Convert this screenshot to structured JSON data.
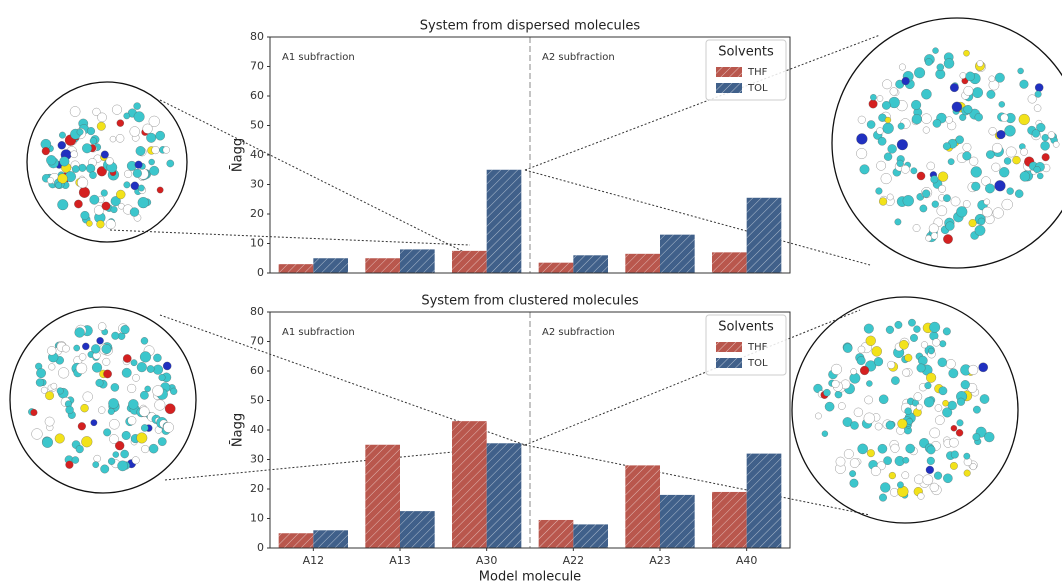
{
  "chart_data": [
    {
      "type": "bar",
      "title": "System from dispersed molecules",
      "ylabel": "N̄agg",
      "annotations": [
        "A1 subfraction",
        "A2 subfraction"
      ],
      "legend_title": "Solvents",
      "legend": "upper right",
      "ylim": [
        0,
        80
      ],
      "yticks": [
        0,
        10,
        20,
        30,
        40,
        50,
        60,
        70,
        80
      ],
      "hatch": true,
      "series": [
        {
          "name": "THF",
          "color": "#b9574d",
          "values": [
            3,
            5,
            7.5,
            3.5,
            6.5,
            7
          ]
        },
        {
          "name": "TOL",
          "color": "#40608a",
          "values": [
            5,
            8,
            35,
            6,
            13,
            25.5
          ]
        }
      ]
    },
    {
      "type": "bar",
      "title": "System from clustered molecules",
      "ylabel": "N̄agg",
      "xlabel": "Model molecule",
      "annotations": [
        "A1 subfraction",
        "A2 subfraction"
      ],
      "legend_title": "Solvents",
      "legend": "upper right",
      "categories": [
        "A12",
        "A13",
        "A30",
        "A22",
        "A23",
        "A40"
      ],
      "ylim": [
        0,
        80
      ],
      "yticks": [
        0,
        10,
        20,
        30,
        40,
        50,
        60,
        70,
        80
      ],
      "hatch": true,
      "series": [
        {
          "name": "THF",
          "color": "#b9574d",
          "values": [
            5,
            35,
            43,
            9.5,
            28,
            19
          ]
        },
        {
          "name": "TOL",
          "color": "#40608a",
          "values": [
            6,
            12.5,
            35.5,
            8,
            18,
            32
          ]
        }
      ]
    }
  ]
}
